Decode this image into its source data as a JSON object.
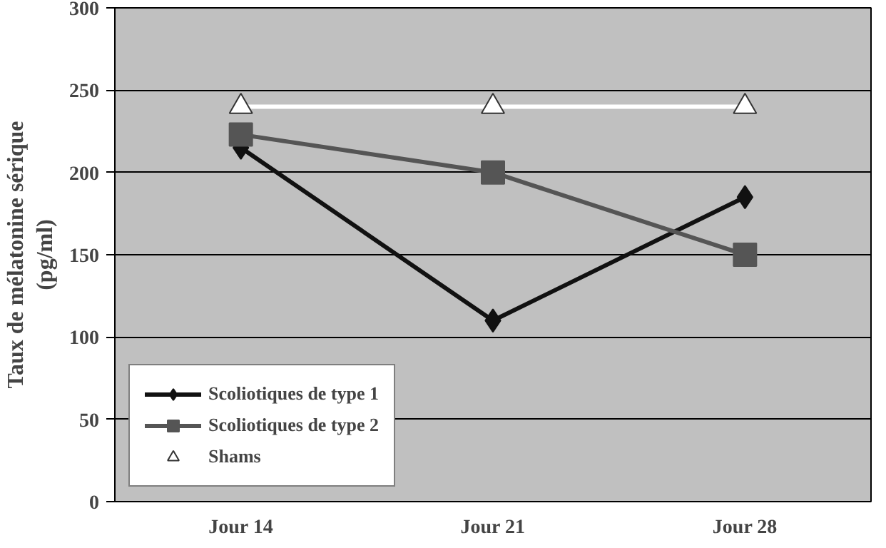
{
  "chart_data": {
    "type": "line",
    "ylabel": "Taux de mélatonine sérique\n(pg/ml)",
    "categories": [
      "Jour 14",
      "Jour 21",
      "Jour 28"
    ],
    "series": [
      {
        "name": "Scoliotiques de type 1",
        "color": "#111111",
        "marker": "diamond",
        "values": [
          215,
          110,
          185
        ]
      },
      {
        "name": "Scoliotiques de type 2",
        "color": "#555555",
        "marker": "square",
        "values": [
          223,
          200,
          150
        ]
      },
      {
        "name": "Shams",
        "color": "#ffffff",
        "marker": "triangle",
        "values": [
          240,
          240,
          240
        ]
      }
    ],
    "ylim": [
      0,
      300
    ],
    "yticks": [
      0,
      50,
      100,
      150,
      200,
      250,
      300
    ],
    "grid": "y",
    "legend": "bottom left",
    "line_style": "solid"
  }
}
